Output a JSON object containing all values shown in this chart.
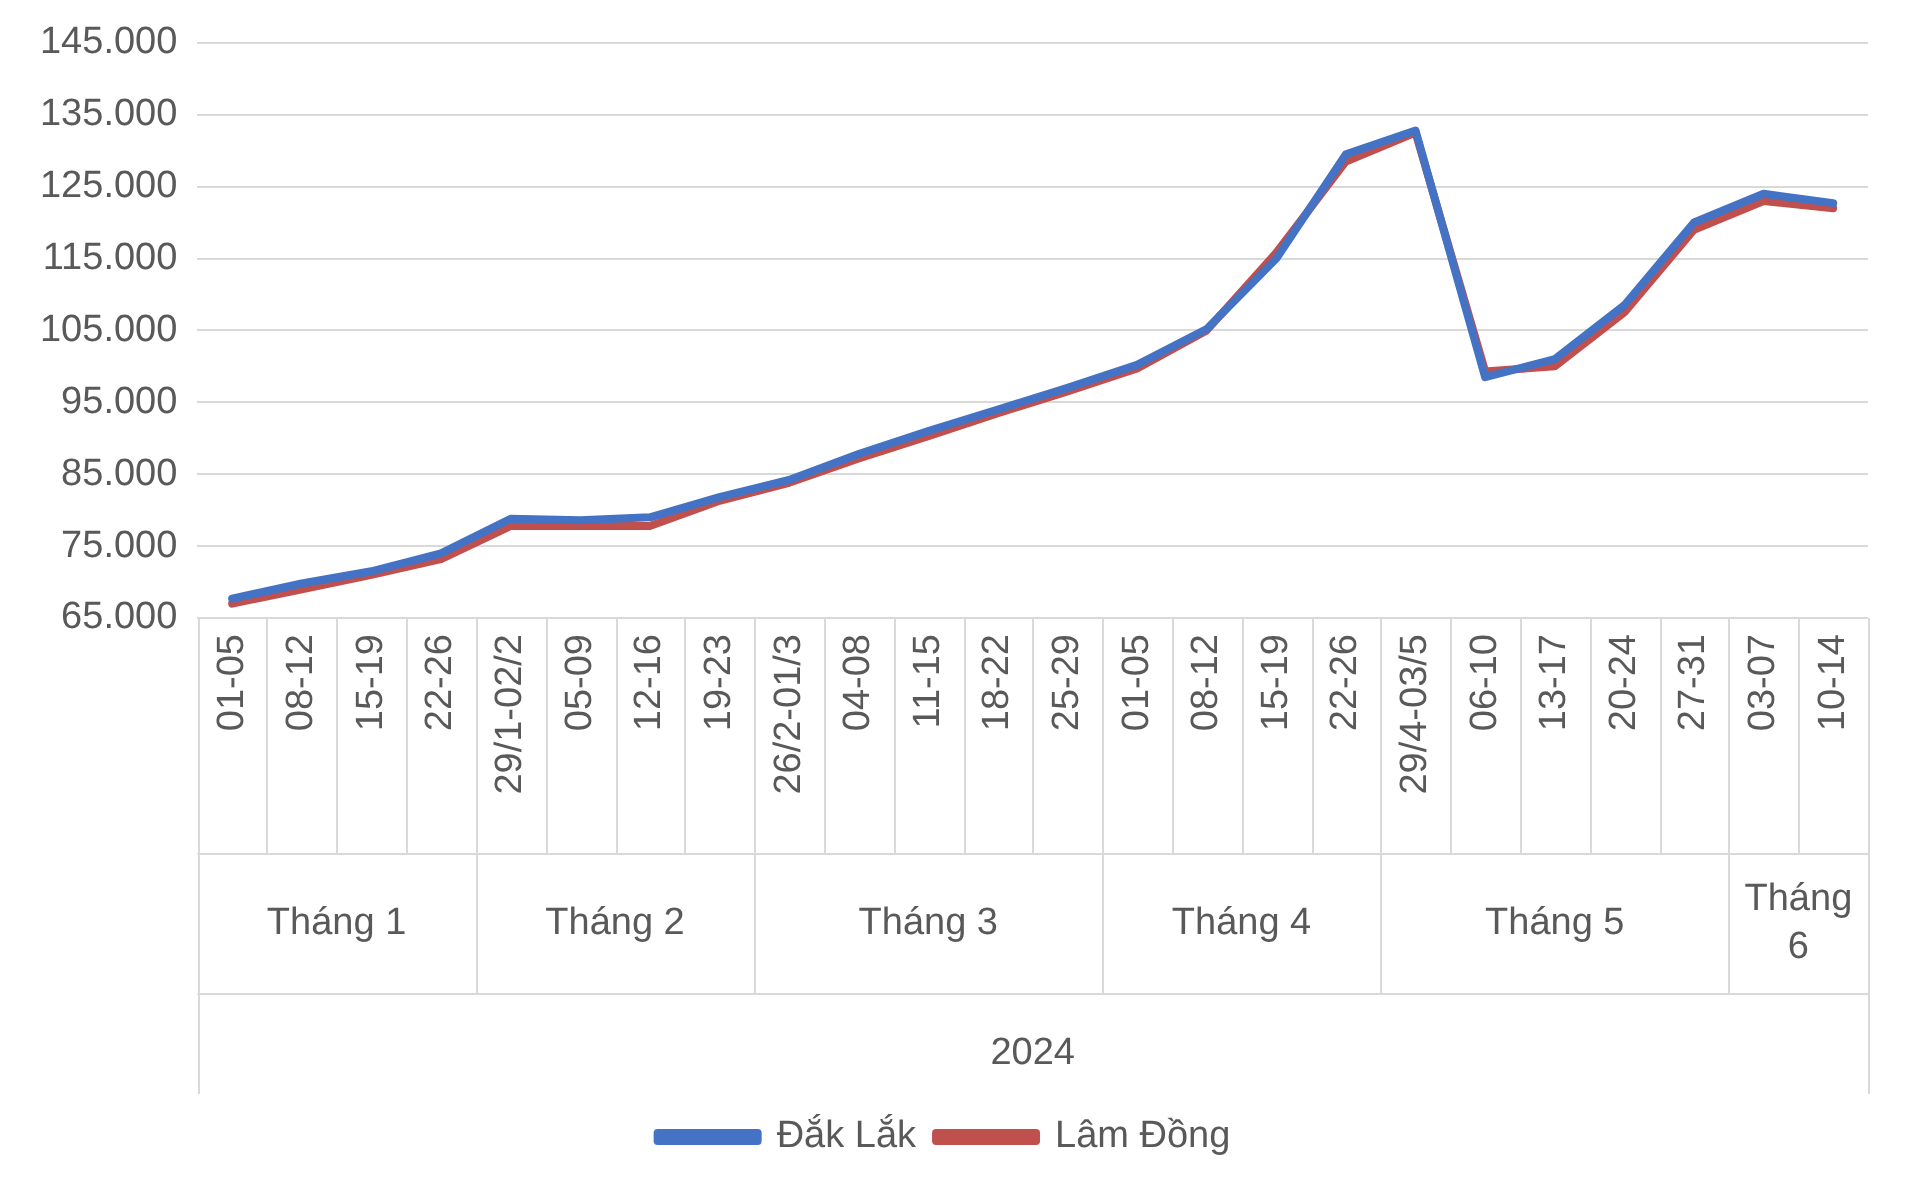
{
  "chart_data": {
    "type": "line",
    "categories": [
      "01-05",
      "08-12",
      "15-19",
      "22-26",
      "29/1-02/2",
      "05-09",
      "12-16",
      "19-23",
      "26/2-01/3",
      "04-08",
      "11-15",
      "18-22",
      "25-29",
      "01-05",
      "08-12",
      "15-19",
      "22-26",
      "29/4-03/5",
      "06-10",
      "13-17",
      "20-24",
      "27-31",
      "03-07",
      "10-14"
    ],
    "series": [
      {
        "name": "Đắk Lắk",
        "color": "#4472c4",
        "values": [
          67700,
          69800,
          71500,
          74000,
          78800,
          78600,
          79000,
          81800,
          84200,
          87800,
          91000,
          94000,
          97000,
          100200,
          105200,
          115000,
          129500,
          132800,
          98500,
          101000,
          108500,
          120000,
          124000,
          122700
        ]
      },
      {
        "name": "Lâm Đồng",
        "color": "#c0504d",
        "values": [
          67000,
          69000,
          71000,
          73200,
          77800,
          77800,
          77800,
          81300,
          83800,
          87200,
          90300,
          93500,
          96500,
          99700,
          105000,
          115800,
          128500,
          132500,
          99300,
          100000,
          107500,
          119000,
          123000,
          122000
        ]
      }
    ],
    "ylim": [
      65000,
      145000
    ],
    "yticks": [
      {
        "value": 65000,
        "label": "65.000"
      },
      {
        "value": 75000,
        "label": "75.000"
      },
      {
        "value": 85000,
        "label": "85.000"
      },
      {
        "value": 95000,
        "label": "95.000"
      },
      {
        "value": 105000,
        "label": "105.000"
      },
      {
        "value": 115000,
        "label": "115.000"
      },
      {
        "value": 125000,
        "label": "125.000"
      },
      {
        "value": 135000,
        "label": "135.000"
      },
      {
        "value": 145000,
        "label": "145.000"
      }
    ],
    "annotations": [
      "Tháng 1",
      "Tháng 2",
      "Tháng 3",
      "Tháng 4",
      "Tháng 5",
      "Tháng 6",
      "2024"
    ],
    "grid": "y",
    "legend": "bottom",
    "marker": "none",
    "line_style": "solid"
  }
}
